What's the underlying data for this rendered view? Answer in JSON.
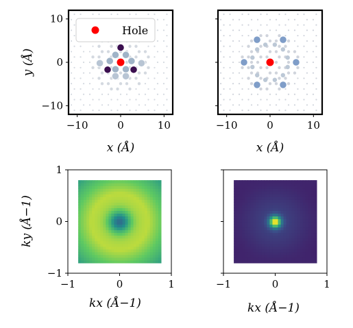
{
  "chart_data": [
    {
      "id": "real-space-hole",
      "type": "scatter",
      "xlabel": "x (Å)",
      "ylabel": "y (Å)",
      "xlim": [
        -12,
        12
      ],
      "ylim": [
        -12,
        12
      ],
      "xticks": [
        -10,
        0,
        10
      ],
      "yticks": [
        -10,
        0,
        10
      ],
      "xtick_labels": [
        "−10",
        "0",
        "10"
      ],
      "ytick_labels": [
        "−10",
        "0",
        "10"
      ],
      "grid": false,
      "legend": {
        "placement": "top-left",
        "entries": [
          {
            "label": "Hole",
            "color": "#ff0000"
          }
        ]
      },
      "hole": {
        "x": 0,
        "y": 0,
        "color": "#ff0000"
      },
      "highlight_points": [
        {
          "x": 0,
          "y": 3.4,
          "color": "#3b0f4f"
        },
        {
          "x": -3.0,
          "y": -1.7,
          "color": "#3b0f4f"
        },
        {
          "x": 3.0,
          "y": -1.7,
          "color": "#3b0f4f"
        },
        {
          "x": -1.2,
          "y": 1.7,
          "color": "#9fb3c7"
        },
        {
          "x": 1.2,
          "y": 1.7,
          "color": "#9fb3c7"
        },
        {
          "x": -2.5,
          "y": 0.3,
          "color": "#9fb3c7"
        },
        {
          "x": 2.5,
          "y": 0.3,
          "color": "#9fb3c7"
        },
        {
          "x": -1.2,
          "y": -1.6,
          "color": "#9fb3c7"
        },
        {
          "x": 1.2,
          "y": -1.6,
          "color": "#9fb3c7"
        },
        {
          "x": -4.8,
          "y": -0.2,
          "color": "#b8c5d4"
        },
        {
          "x": 4.8,
          "y": -0.2,
          "color": "#b8c5d4"
        },
        {
          "x": -1.2,
          "y": -3.2,
          "color": "#b8c5d4"
        },
        {
          "x": 1.2,
          "y": -3.2,
          "color": "#b8c5d4"
        },
        {
          "x": -1.8,
          "y": 5.6,
          "color": "#c7d0db"
        },
        {
          "x": 1.8,
          "y": 5.6,
          "color": "#c7d0db"
        }
      ]
    },
    {
      "id": "real-space-structure",
      "type": "scatter",
      "xlabel": "x (Å)",
      "ylabel": "",
      "xlim": [
        -12,
        12
      ],
      "ylim": [
        -12,
        12
      ],
      "xticks": [
        -10,
        0,
        10
      ],
      "yticks": [
        -10,
        0,
        10
      ],
      "xtick_labels": [
        "−10",
        "0",
        "10"
      ],
      "ytick_labels": [
        "",
        "",
        ""
      ],
      "grid": false,
      "hole": {
        "x": 0,
        "y": 0,
        "color": "#ff0000"
      },
      "highlight_points": [
        {
          "x": -3.0,
          "y": 5.2,
          "color": "#7f9dc8"
        },
        {
          "x": 3.0,
          "y": 5.2,
          "color": "#7f9dc8"
        },
        {
          "x": -6.0,
          "y": 0,
          "color": "#7f9dc8"
        },
        {
          "x": 6.0,
          "y": 0,
          "color": "#7f9dc8"
        },
        {
          "x": -3.0,
          "y": -5.2,
          "color": "#7f9dc8"
        },
        {
          "x": 3.0,
          "y": -5.2,
          "color": "#7f9dc8"
        }
      ]
    },
    {
      "id": "momentum-space-a",
      "type": "heatmap",
      "xlabel": "kx (Å−1)",
      "ylabel": "ky (Å−1)",
      "xlim": [
        -1,
        1
      ],
      "ylim": [
        -1,
        1
      ],
      "xticks": [
        -1,
        0,
        1
      ],
      "yticks": [
        -1,
        0,
        1
      ],
      "xtick_labels": [
        "−1",
        "0",
        "1"
      ],
      "ytick_labels": [
        "−1",
        "0",
        "1"
      ],
      "extent": [
        -0.8,
        0.8
      ],
      "pattern": "center-minimum, ring-maximum, six corner minima",
      "colormap": "viridis"
    },
    {
      "id": "momentum-space-b",
      "type": "heatmap",
      "xlabel": "kx (Å−1)",
      "ylabel": "",
      "xlim": [
        -1,
        1
      ],
      "ylim": [
        -1,
        1
      ],
      "xticks": [
        -1,
        0,
        1
      ],
      "yticks": [
        -1,
        0,
        1
      ],
      "xtick_labels": [
        "−1",
        "0",
        "1"
      ],
      "ytick_labels": [
        "",
        "",
        ""
      ],
      "extent": [
        -0.8,
        0.8
      ],
      "pattern": "center-maximum, six-fold secondary maxima",
      "colormap": "viridis"
    }
  ],
  "colors": {
    "hole": "#ff0000",
    "viridis": [
      "#440154",
      "#3b528b",
      "#21918c",
      "#5ec962",
      "#fde725"
    ]
  }
}
